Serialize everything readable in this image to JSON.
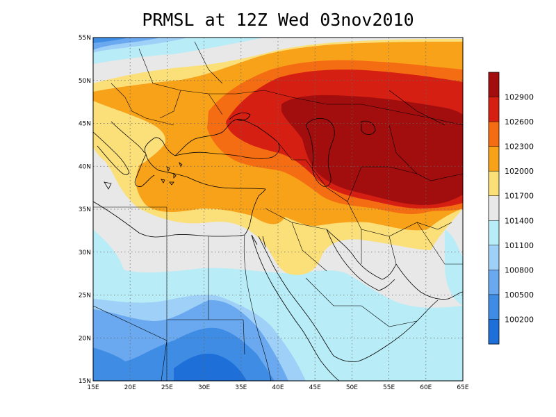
{
  "title": "PRMSL at 12Z Wed 03nov2010",
  "map": {
    "lon_ticks": [
      "15E",
      "20E",
      "25E",
      "30E",
      "35E",
      "40E",
      "45E",
      "50E",
      "55E",
      "60E",
      "65E"
    ],
    "lat_ticks": [
      "15N",
      "20N",
      "25N",
      "30N",
      "35N",
      "40N",
      "45N",
      "50N",
      "55N"
    ],
    "lon_range": [
      15,
      65
    ],
    "lat_range": [
      15,
      55
    ],
    "grid": "dotted"
  },
  "colorbar": {
    "labels": [
      "102900",
      "102600",
      "102300",
      "102000",
      "101700",
      "101400",
      "101100",
      "100800",
      "100500",
      "100200"
    ],
    "colors": {
      "c1": "#1f6fd8",
      "c2": "#3e8ce4",
      "c3": "#6aa9ef",
      "c4": "#9fd0f7",
      "c5": "#b8ecf7",
      "c6": "#e8e8e8",
      "c7": "#fbe07a",
      "c8": "#f8a21a",
      "c9": "#f56d12",
      "c10": "#d51f12",
      "c11": "#a20e0e"
    }
  }
}
